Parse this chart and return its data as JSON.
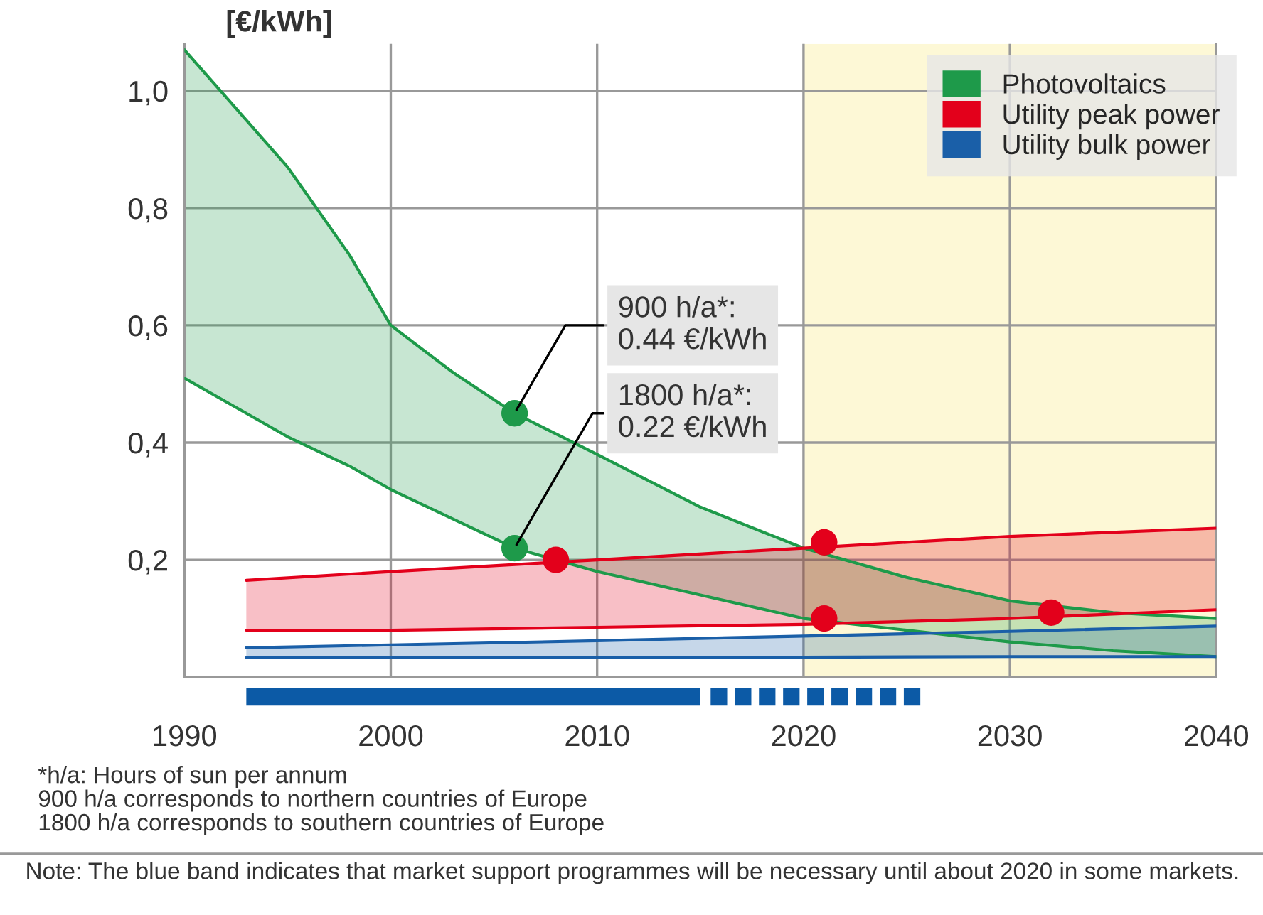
{
  "chart_data": {
    "type": "line",
    "ylabel": "[€/kWh]",
    "xlim": [
      1990,
      2040
    ],
    "ylim": [
      0,
      1.08
    ],
    "xticks": [
      1990,
      2000,
      2010,
      2020,
      2030,
      2040
    ],
    "yticks": [
      {
        "value": 0.2,
        "label": "0,2"
      },
      {
        "value": 0.4,
        "label": "0,4"
      },
      {
        "value": 0.6,
        "label": "0,6"
      },
      {
        "value": 0.8,
        "label": "0,8"
      },
      {
        "value": 1.0,
        "label": "1,0"
      }
    ],
    "grid": true,
    "legend": "top right",
    "series": [
      {
        "name": "Photovoltaics",
        "color": "#1e9a4a",
        "x": [
          1990,
          1993,
          1995,
          1998,
          2000,
          2003,
          2006,
          2010,
          2015,
          2020,
          2025,
          2030,
          2035,
          2040
        ],
        "values": [
          1.07,
          0.95,
          0.87,
          0.72,
          0.6,
          0.52,
          0.45,
          0.38,
          0.29,
          0.22,
          0.17,
          0.13,
          0.11,
          0.1
        ],
        "upper": [
          1.07,
          0.95,
          0.87,
          0.72,
          0.6,
          0.52,
          0.45,
          0.38,
          0.29,
          0.22,
          0.17,
          0.13,
          0.11,
          0.1
        ],
        "lower": [
          0.51,
          0.45,
          0.41,
          0.36,
          0.32,
          0.27,
          0.22,
          0.18,
          0.14,
          0.1,
          0.08,
          0.06,
          0.045,
          0.035
        ]
      },
      {
        "type": "line",
        "color": "#1e9a4a",
        "x": [
          1990,
          1993,
          1995,
          1998,
          2000,
          2003,
          2006,
          2010,
          2015,
          2020,
          2025,
          2030,
          2035,
          2040
        ],
        "values": [
          0.51,
          0.45,
          0.41,
          0.36,
          0.32,
          0.27,
          0.22,
          0.18,
          0.14,
          0.1,
          0.08,
          0.06,
          0.045,
          0.035
        ]
      },
      {
        "name": "Utility peak power",
        "color": "#e3001b",
        "x": [
          1993,
          2000,
          2010,
          2020,
          2030,
          2040
        ],
        "values": [
          0.165,
          0.18,
          0.2,
          0.22,
          0.24,
          0.254
        ],
        "upper": [
          0.165,
          0.18,
          0.2,
          0.22,
          0.24,
          0.254
        ],
        "lower": [
          0.08,
          0.08,
          0.085,
          0.09,
          0.1,
          0.115
        ]
      },
      {
        "name": "Utility bulk power",
        "color": "#1a5fa8",
        "x": [
          1993,
          2000,
          2010,
          2020,
          2030,
          2040
        ],
        "values": [
          0.05,
          0.055,
          0.062,
          0.07,
          0.078,
          0.087
        ],
        "upper": [
          0.05,
          0.055,
          0.062,
          0.07,
          0.078,
          0.087
        ],
        "lower": [
          0.033,
          0.033,
          0.034,
          0.034,
          0.035,
          0.035
        ]
      },
      {
        "type": "line",
        "color": "#e3001b",
        "x": [
          1993,
          2000,
          2010,
          2020,
          2030,
          2040
        ],
        "values": [
          0.08,
          0.08,
          0.085,
          0.09,
          0.1,
          0.115
        ]
      },
      {
        "type": "line",
        "color": "#1a5fa8",
        "x": [
          1993,
          2000,
          2010,
          2020,
          2030,
          2040
        ],
        "values": [
          0.033,
          0.033,
          0.034,
          0.034,
          0.035,
          0.035
        ]
      },
      {
        "type": "scatter",
        "color": "#1e9a4a",
        "x": [
          2006,
          2006
        ],
        "values": [
          0.45,
          0.22
        ]
      },
      {
        "type": "scatter",
        "color": "#e3001b",
        "x": [
          2008,
          2021,
          2021,
          2032
        ],
        "values": [
          0.2,
          0.23,
          0.1,
          0.11
        ]
      }
    ],
    "bands": [
      {
        "axis": "x",
        "from": 2020,
        "to": 2040,
        "color": "#fdf8d6"
      }
    ],
    "annotations": [
      {
        "text": "900 h/a*:\n0.44 €/kWh",
        "x": 2006,
        "y": 0.45
      },
      {
        "text": "1800 h/a*:\n0.22 €/kWh",
        "x": 2006,
        "y": 0.22
      },
      "*h/a: Hours of sun per annum\n900 h/a corresponds to northern countries of Europe\n1800 h/a corresponds to southern countries of Europe",
      "Note: The blue band indicates that market support programmes will be necessary until about 2020 in some markets."
    ]
  }
}
